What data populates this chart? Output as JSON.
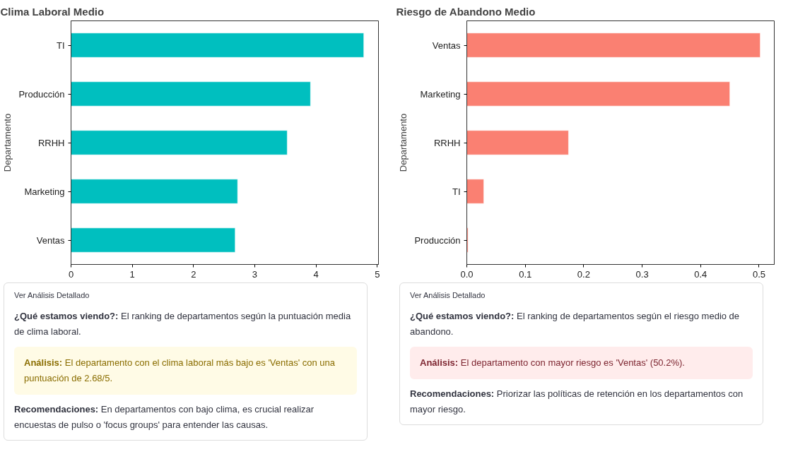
{
  "chart_data": [
    {
      "type": "bar",
      "orientation": "horizontal",
      "title": "Clima Laboral Medio",
      "ylabel": "Departamento",
      "categories": [
        "TI",
        "Producción",
        "RRHH",
        "Marketing",
        "Ventas"
      ],
      "values": [
        4.78,
        3.91,
        3.53,
        2.72,
        2.68
      ],
      "color": "#00bfbf",
      "xlim": [
        0,
        5.02
      ],
      "xticks": [
        0,
        1,
        2,
        3,
        4,
        5
      ],
      "grid": false,
      "annotations": [
        "Ver Análisis Detallado",
        "¿Qué estamos viendo?: El ranking de departamentos según la puntuación media de clima laboral.",
        "Análisis: El departamento con el clima laboral más bajo es 'Ventas' con una puntuación de 2.68/5.",
        "Recomendaciones: En departamentos con bajo clima, es crucial realizar encuestas de pulso o 'focus groups' para entender las causas."
      ]
    },
    {
      "type": "bar",
      "orientation": "horizontal",
      "title": "Riesgo de Abandono Medio",
      "ylabel": "Departamento",
      "categories": [
        "Ventas",
        "Marketing",
        "RRHH",
        "TI",
        "Producción"
      ],
      "values": [
        0.502,
        0.45,
        0.174,
        0.029,
        0.002
      ],
      "color": "#fa8072",
      "xlim": [
        0,
        0.526
      ],
      "xticks": [
        {
          "value": 0,
          "label": "0.0"
        },
        0.1,
        0.2,
        0.3,
        0.4,
        0.5
      ],
      "grid": false,
      "annotations": [
        "Ver Análisis Detallado",
        "¿Qué estamos viendo?: El ranking de departamentos según el riesgo medio de abandono.",
        "Análisis: El departamento con mayor riesgo es 'Ventas' (50.2%).",
        "Recomendaciones: Priorizar las políticas de retención en los departamentos con mayor riesgo."
      ]
    }
  ]
}
